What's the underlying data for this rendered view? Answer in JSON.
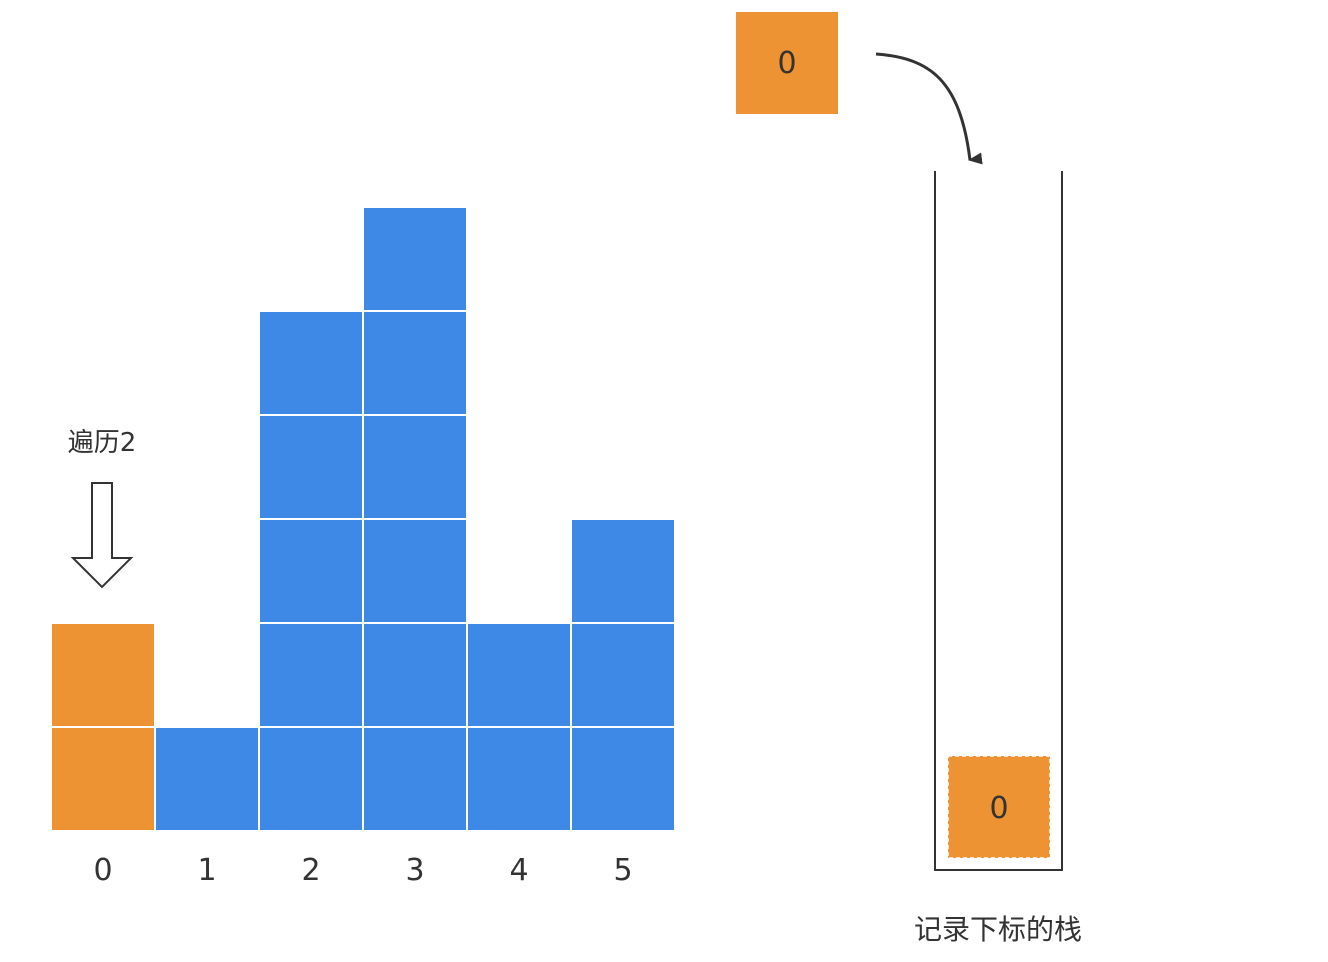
{
  "diagram": {
    "heights": [
      2,
      1,
      5,
      6,
      2,
      3
    ],
    "index_labels": [
      "0",
      "1",
      "2",
      "3",
      "4",
      "5"
    ],
    "highlighted_index": 0,
    "traverse_label": "遍历2",
    "incoming_value": "0",
    "stack_values": [
      "0"
    ],
    "stack_caption": "记录下标的栈",
    "colors": {
      "bar": "#3F89E6",
      "highlight": "#EE9333",
      "cell_border": "#ffffff",
      "stroke": "#333333",
      "text": "#333333"
    }
  }
}
